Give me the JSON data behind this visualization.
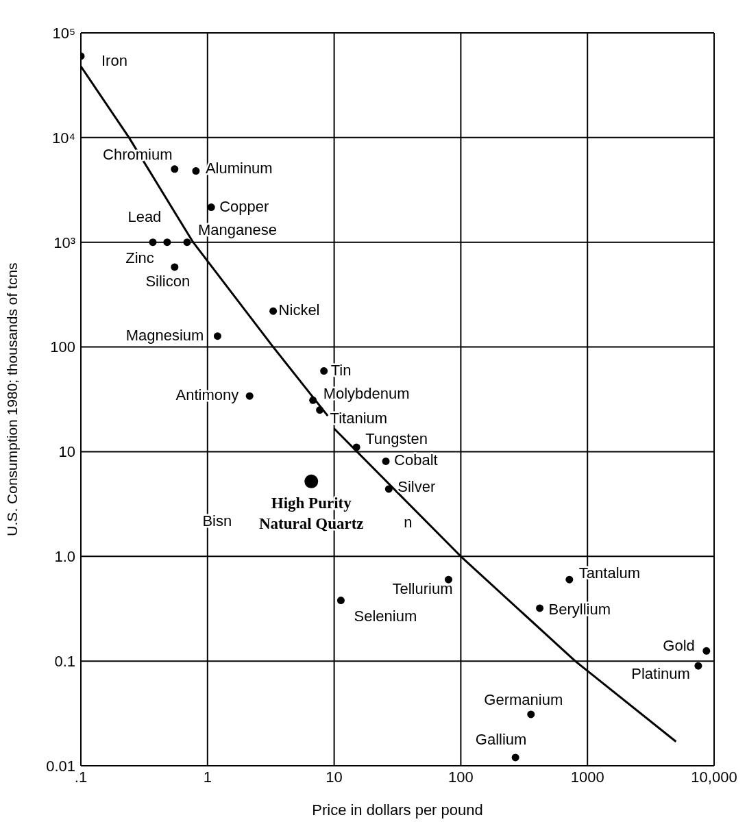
{
  "chart_data": {
    "type": "scatter",
    "xlabel": "Price in dollars per pound",
    "ylabel": "U.S. Consumption 1980; thousands of tcns",
    "log": "xy",
    "grid": true,
    "marker": "circle",
    "line_style": "solid",
    "xlim": [
      0.1,
      10000
    ],
    "xticks": [
      {
        "value": 0.1,
        "label": ".1"
      },
      1,
      10,
      100,
      1000,
      {
        "value": 10000,
        "label": "10,000"
      }
    ],
    "ylim": [
      0.01,
      100000
    ],
    "yticks": [
      {
        "value": 0.01,
        "label": "0.01"
      },
      0.1,
      {
        "value": 1,
        "label": "1.0"
      },
      10,
      100,
      {
        "value": 1000,
        "label": "10³"
      },
      {
        "value": 10000,
        "label": "10⁴"
      },
      {
        "value": 100000,
        "label": "10⁵"
      }
    ],
    "series": [
      {
        "color": "#000000",
        "x": [
          0.1,
          0.55,
          0.81,
          1.07,
          0.37,
          0.48,
          0.69,
          0.55,
          3.3,
          1.2,
          8.3,
          2.15,
          6.8,
          7.7,
          15,
          25.6,
          27,
          80,
          11.3,
          720,
          420,
          8700,
          7500,
          358,
          270
        ],
        "values": [
          60000,
          5000,
          4800,
          2160,
          1000,
          1000,
          1000,
          580,
          220,
          127,
          59,
          34,
          31,
          25,
          11,
          8.1,
          4.4,
          0.6,
          0.38,
          0.6,
          0.32,
          0.125,
          0.09,
          0.031,
          0.012
        ]
      },
      {
        "color": "#000000",
        "x": [
          6.6
        ],
        "values": [
          5.2
        ]
      },
      {
        "type": "line",
        "marker": "none",
        "color": "#000000",
        "x": [
          0.1,
          0.24,
          0.77,
          3.3,
          8.9
        ],
        "values": [
          48000,
          10000,
          1000,
          100,
          22
        ]
      },
      {
        "type": "line",
        "marker": "none",
        "color": "#000000",
        "x": [
          10,
          100,
          800,
          5000
        ],
        "values": [
          16.6,
          1,
          0.1,
          0.017
        ]
      }
    ],
    "annotations": [
      {
        "text": "Iron",
        "x": 0.1,
        "y": 60000
      },
      {
        "text": "Chromium",
        "x": 0.55,
        "y": 5000
      },
      {
        "text": "Aluminum",
        "x": 0.81,
        "y": 4800
      },
      {
        "text": "Copper",
        "x": 1.07,
        "y": 2160
      },
      {
        "text": "Zinc",
        "x": 0.37,
        "y": 1000
      },
      {
        "text": "Lead",
        "x": 0.48,
        "y": 1000
      },
      {
        "text": "Manganese",
        "x": 0.69,
        "y": 1000
      },
      {
        "text": "Silicon",
        "x": 0.55,
        "y": 580
      },
      {
        "text": "Nickel",
        "x": 3.3,
        "y": 220
      },
      {
        "text": "Magnesium",
        "x": 1.2,
        "y": 127
      },
      {
        "text": "Tin",
        "x": 8.3,
        "y": 59
      },
      {
        "text": "Antimony",
        "x": 2.15,
        "y": 34
      },
      {
        "text": "Molybdenum",
        "x": 6.8,
        "y": 31
      },
      {
        "text": "Titanium",
        "x": 7.7,
        "y": 25
      },
      {
        "text": "Tungsten",
        "x": 15,
        "y": 11
      },
      {
        "text": "Cobalt",
        "x": 25.6,
        "y": 8.1
      },
      {
        "text": "Silver",
        "x": 27,
        "y": 4.4
      },
      {
        "text": "Tellurium",
        "x": 80,
        "y": 0.6
      },
      {
        "text": "Selenium",
        "x": 11.3,
        "y": 0.38
      },
      {
        "text": "Tantalum",
        "x": 720,
        "y": 0.6
      },
      {
        "text": "Beryllium",
        "x": 420,
        "y": 0.32
      },
      {
        "text": "Gold",
        "x": 8700,
        "y": 0.125
      },
      {
        "text": "Platinum",
        "x": 7500,
        "y": 0.09
      },
      {
        "text": "Germanium",
        "x": 358,
        "y": 0.031
      },
      {
        "text": "Gallium",
        "x": 270,
        "y": 0.012
      },
      {
        "text": "High Purity\nNatural Quartz",
        "x": 6.6,
        "y": 5.2
      },
      "Bisn",
      "n"
    ]
  }
}
